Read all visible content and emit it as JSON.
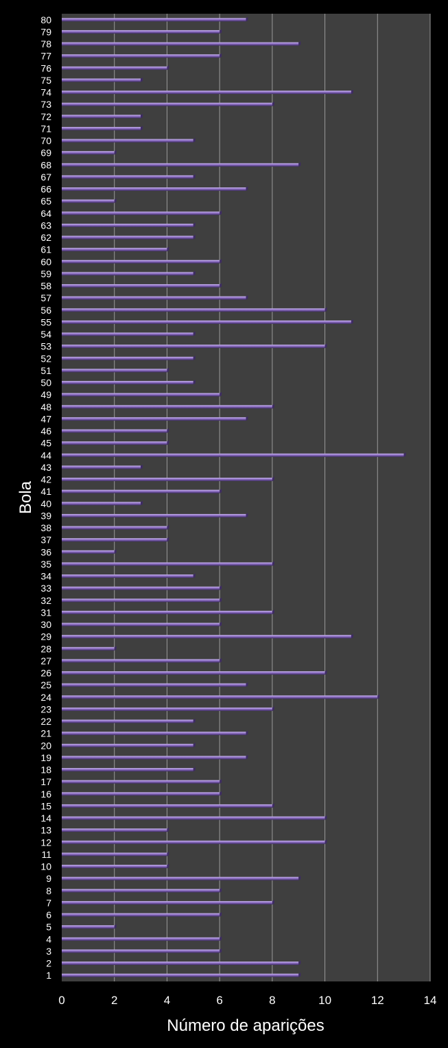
{
  "chart_data": {
    "type": "bar",
    "orientation": "horizontal",
    "title": "",
    "xlabel": "Número de aparições",
    "ylabel": "Bola",
    "xlim": [
      0,
      14
    ],
    "xticks": [
      "0",
      "2",
      "4",
      "6",
      "8",
      "10",
      "12",
      "14"
    ],
    "grid": true,
    "legend": "none",
    "colors": {
      "bar": "#8e6fc4",
      "bar_highlight": "#c6b3ec",
      "bar_shadow": "#3e2c63",
      "plot_background": "#3f3f3f",
      "gridline": "#9a9a9a"
    },
    "categories": [
      "1",
      "2",
      "3",
      "4",
      "5",
      "6",
      "7",
      "8",
      "9",
      "10",
      "11",
      "12",
      "13",
      "14",
      "15",
      "16",
      "17",
      "18",
      "19",
      "20",
      "21",
      "22",
      "23",
      "24",
      "25",
      "26",
      "27",
      "28",
      "29",
      "30",
      "31",
      "32",
      "33",
      "34",
      "35",
      "36",
      "37",
      "38",
      "39",
      "40",
      "41",
      "42",
      "43",
      "44",
      "45",
      "46",
      "47",
      "48",
      "49",
      "50",
      "51",
      "52",
      "53",
      "54",
      "55",
      "56",
      "57",
      "58",
      "59",
      "60",
      "61",
      "62",
      "63",
      "64",
      "65",
      "66",
      "67",
      "68",
      "69",
      "70",
      "71",
      "72",
      "73",
      "74",
      "75",
      "76",
      "77",
      "78",
      "79",
      "80"
    ],
    "values": [
      9,
      9,
      6,
      6,
      2,
      6,
      8,
      6,
      9,
      4,
      4,
      10,
      4,
      10,
      8,
      6,
      6,
      5,
      7,
      5,
      7,
      5,
      8,
      12,
      7,
      10,
      6,
      2,
      11,
      6,
      8,
      6,
      6,
      5,
      8,
      2,
      4,
      4,
      7,
      3,
      6,
      8,
      3,
      13,
      4,
      4,
      7,
      8,
      6,
      5,
      4,
      5,
      10,
      5,
      11,
      10,
      7,
      6,
      5,
      6,
      4,
      5,
      5,
      6,
      2,
      7,
      5,
      9,
      2,
      5,
      3,
      3,
      8,
      11,
      3,
      4,
      6,
      9,
      6,
      7
    ]
  }
}
